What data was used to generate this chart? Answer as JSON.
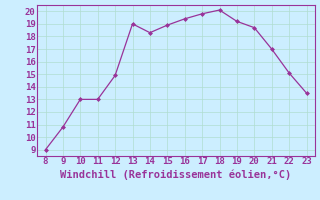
{
  "x": [
    8,
    9,
    10,
    11,
    12,
    13,
    14,
    15,
    16,
    17,
    18,
    19,
    20,
    21,
    22,
    23
  ],
  "y": [
    9.0,
    10.8,
    13.0,
    13.0,
    14.9,
    19.0,
    18.3,
    18.9,
    19.4,
    19.8,
    20.1,
    19.2,
    18.7,
    17.0,
    15.1,
    13.5
  ],
  "xlim": [
    7.5,
    23.5
  ],
  "ylim": [
    8.5,
    20.5
  ],
  "xticks": [
    8,
    9,
    10,
    11,
    12,
    13,
    14,
    15,
    16,
    17,
    18,
    19,
    20,
    21,
    22,
    23
  ],
  "yticks": [
    9,
    10,
    11,
    12,
    13,
    14,
    15,
    16,
    17,
    18,
    19,
    20
  ],
  "xlabel": "Windchill (Refroidissement éolien,°C)",
  "line_color": "#993399",
  "marker_color": "#993399",
  "bg_color": "#cceeff",
  "grid_color": "#b0ddd0",
  "xlabel_color": "#993399",
  "tick_color": "#993399",
  "tick_fontsize": 6.5,
  "xlabel_fontsize": 7.5
}
